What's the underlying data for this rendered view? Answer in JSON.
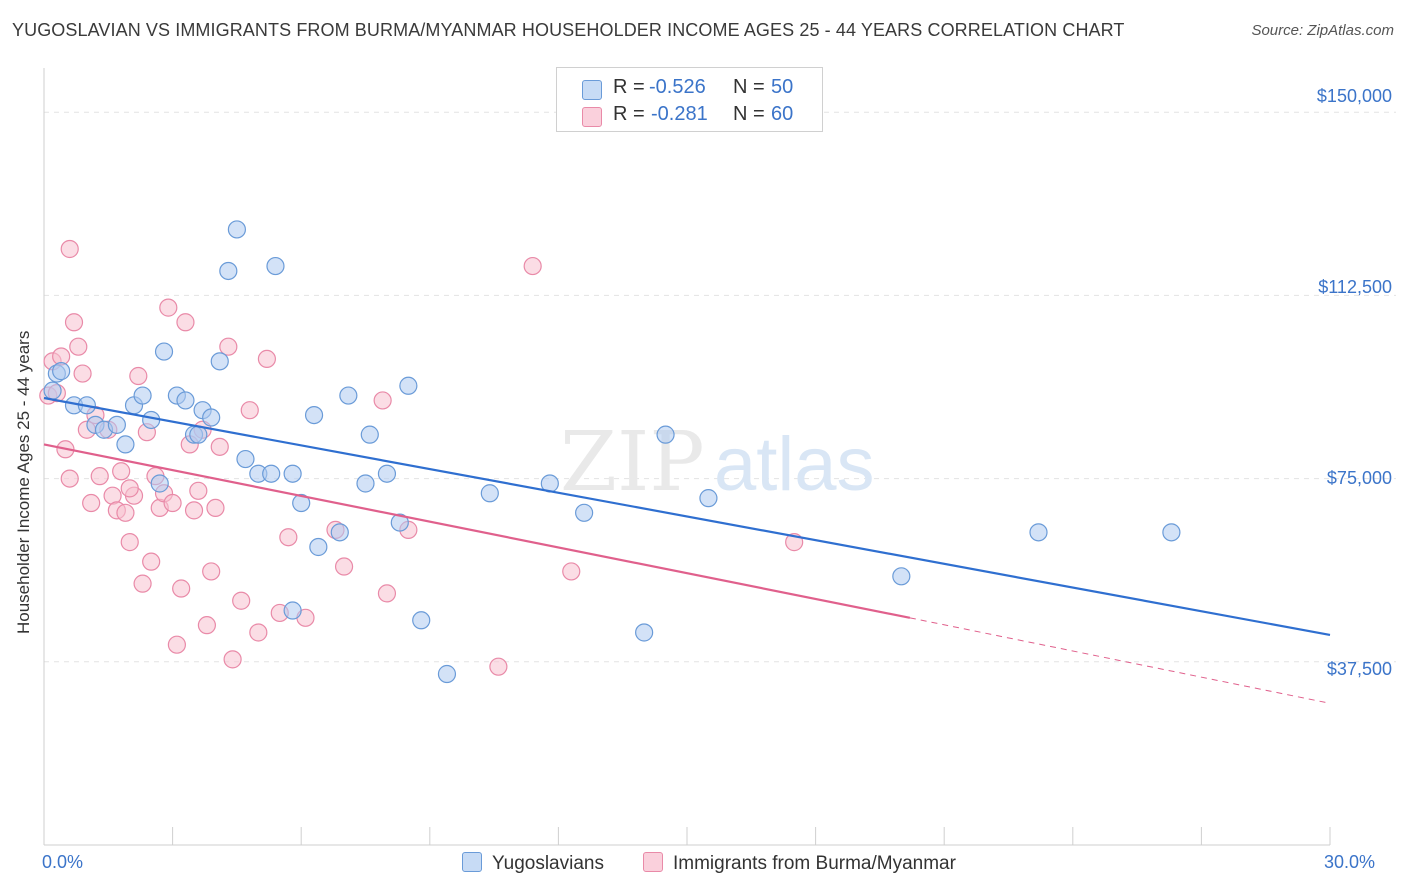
{
  "title": "YUGOSLAVIAN VS IMMIGRANTS FROM BURMA/MYANMAR HOUSEHOLDER INCOME AGES 25 - 44 YEARS CORRELATION CHART",
  "source": "Source: ZipAtlas.com",
  "watermark": {
    "zip": "ZIP",
    "atlas": "atlas"
  },
  "legend": {
    "rows": [
      {
        "r_label": "R =",
        "r_value": "-0.526",
        "n_label": "N =",
        "n_value": "50"
      },
      {
        "r_label": "R =",
        "r_value": "-0.281",
        "n_label": "N =",
        "n_value": "60"
      }
    ]
  },
  "colors": {
    "blue_fill": "#aecbf0",
    "blue_stroke": "#6a9bd8",
    "blue_line": "#2f6fd0",
    "pink_fill": "#f7c1d0",
    "pink_stroke": "#e98aa8",
    "pink_line": "#e0608c",
    "tick_text": "#3b74c9",
    "grid": "#e3e3e3"
  },
  "chart_data": {
    "type": "scatter",
    "title": "YUGOSLAVIAN VS IMMIGRANTS FROM BURMA/MYANMAR HOUSEHOLDER INCOME AGES 25 - 44 YEARS CORRELATION CHART",
    "xlabel": "",
    "ylabel": "Householder Income Ages 25 - 44 years",
    "xlim": [
      0,
      30
    ],
    "ylim": [
      0,
      157000
    ],
    "x_tick_labels": [
      "0.0%",
      "30.0%"
    ],
    "y_ticks": [
      37500,
      75000,
      112500,
      150000
    ],
    "y_tick_labels": [
      "$37,500",
      "$75,000",
      "$112,500",
      "$150,000"
    ],
    "grid": true,
    "legend_position": "bottom",
    "series": [
      {
        "name": "Yugoslavians",
        "color": "#aecbf0",
        "R": -0.526,
        "N": 50,
        "trend": {
          "x": [
            0,
            30
          ],
          "y": [
            91500,
            43000
          ]
        },
        "points": [
          [
            0.2,
            93000
          ],
          [
            0.3,
            96500
          ],
          [
            0.4,
            97000
          ],
          [
            0.7,
            90000
          ],
          [
            1.0,
            90000
          ],
          [
            1.2,
            86000
          ],
          [
            1.4,
            85000
          ],
          [
            1.7,
            86000
          ],
          [
            1.9,
            82000
          ],
          [
            2.1,
            90000
          ],
          [
            2.3,
            92000
          ],
          [
            2.5,
            87000
          ],
          [
            2.7,
            74000
          ],
          [
            2.8,
            101000
          ],
          [
            3.1,
            92000
          ],
          [
            3.3,
            91000
          ],
          [
            3.5,
            84000
          ],
          [
            3.7,
            89000
          ],
          [
            3.9,
            87500
          ],
          [
            4.1,
            99000
          ],
          [
            4.3,
            117500
          ],
          [
            4.5,
            126000
          ],
          [
            4.7,
            79000
          ],
          [
            5.0,
            76000
          ],
          [
            5.3,
            76000
          ],
          [
            5.4,
            118500
          ],
          [
            5.8,
            76000
          ],
          [
            6.0,
            70000
          ],
          [
            6.3,
            88000
          ],
          [
            6.4,
            61000
          ],
          [
            6.9,
            64000
          ],
          [
            7.1,
            92000
          ],
          [
            7.5,
            74000
          ],
          [
            7.6,
            84000
          ],
          [
            8.0,
            76000
          ],
          [
            8.3,
            66000
          ],
          [
            8.5,
            94000
          ],
          [
            8.8,
            46000
          ],
          [
            9.4,
            35000
          ],
          [
            10.4,
            72000
          ],
          [
            11.8,
            74000
          ],
          [
            12.6,
            68000
          ],
          [
            14.0,
            43500
          ],
          [
            14.5,
            84000
          ],
          [
            15.5,
            71000
          ],
          [
            20.0,
            55000
          ],
          [
            23.2,
            64000
          ],
          [
            26.3,
            64000
          ],
          [
            5.8,
            48000
          ],
          [
            3.6,
            84000
          ]
        ]
      },
      {
        "name": "Immigrants from Burma/Myanmar",
        "color": "#f7c1d0",
        "R": -0.281,
        "N": 60,
        "trend": {
          "x": [
            0,
            20.2
          ],
          "y": [
            82000,
            46500
          ]
        },
        "trend_dashed": {
          "x": [
            20.2,
            30
          ],
          "y": [
            46500,
            29000
          ]
        },
        "points": [
          [
            0.1,
            92000
          ],
          [
            0.2,
            99000
          ],
          [
            0.3,
            92500
          ],
          [
            0.4,
            100000
          ],
          [
            0.5,
            81000
          ],
          [
            0.6,
            75000
          ],
          [
            0.6,
            122000
          ],
          [
            0.7,
            107000
          ],
          [
            0.8,
            102000
          ],
          [
            0.9,
            96500
          ],
          [
            1.0,
            85000
          ],
          [
            1.1,
            70000
          ],
          [
            1.2,
            88000
          ],
          [
            1.3,
            75500
          ],
          [
            1.5,
            85000
          ],
          [
            1.6,
            71500
          ],
          [
            1.7,
            68500
          ],
          [
            1.8,
            76500
          ],
          [
            1.9,
            68000
          ],
          [
            2.0,
            62000
          ],
          [
            2.1,
            71500
          ],
          [
            2.2,
            96000
          ],
          [
            2.3,
            53500
          ],
          [
            2.4,
            84500
          ],
          [
            2.5,
            58000
          ],
          [
            2.6,
            75500
          ],
          [
            2.7,
            69000
          ],
          [
            2.8,
            72000
          ],
          [
            2.9,
            110000
          ],
          [
            3.0,
            70000
          ],
          [
            3.1,
            41000
          ],
          [
            3.2,
            52500
          ],
          [
            3.3,
            107000
          ],
          [
            3.4,
            82000
          ],
          [
            3.5,
            68500
          ],
          [
            3.6,
            72500
          ],
          [
            3.7,
            85000
          ],
          [
            3.8,
            45000
          ],
          [
            3.9,
            56000
          ],
          [
            4.0,
            69000
          ],
          [
            4.1,
            81500
          ],
          [
            4.3,
            102000
          ],
          [
            4.4,
            38000
          ],
          [
            4.6,
            50000
          ],
          [
            4.8,
            89000
          ],
          [
            5.0,
            43500
          ],
          [
            5.2,
            99500
          ],
          [
            5.5,
            47500
          ],
          [
            5.7,
            63000
          ],
          [
            6.1,
            46500
          ],
          [
            6.8,
            64500
          ],
          [
            7.0,
            57000
          ],
          [
            7.9,
            91000
          ],
          [
            8.0,
            51500
          ],
          [
            8.5,
            64500
          ],
          [
            10.6,
            36500
          ],
          [
            11.4,
            118500
          ],
          [
            12.3,
            56000
          ],
          [
            17.5,
            62000
          ],
          [
            2.0,
            73000
          ]
        ]
      }
    ]
  },
  "bottom_legend": [
    "Yugoslavians",
    "Immigrants from Burma/Myanmar"
  ]
}
